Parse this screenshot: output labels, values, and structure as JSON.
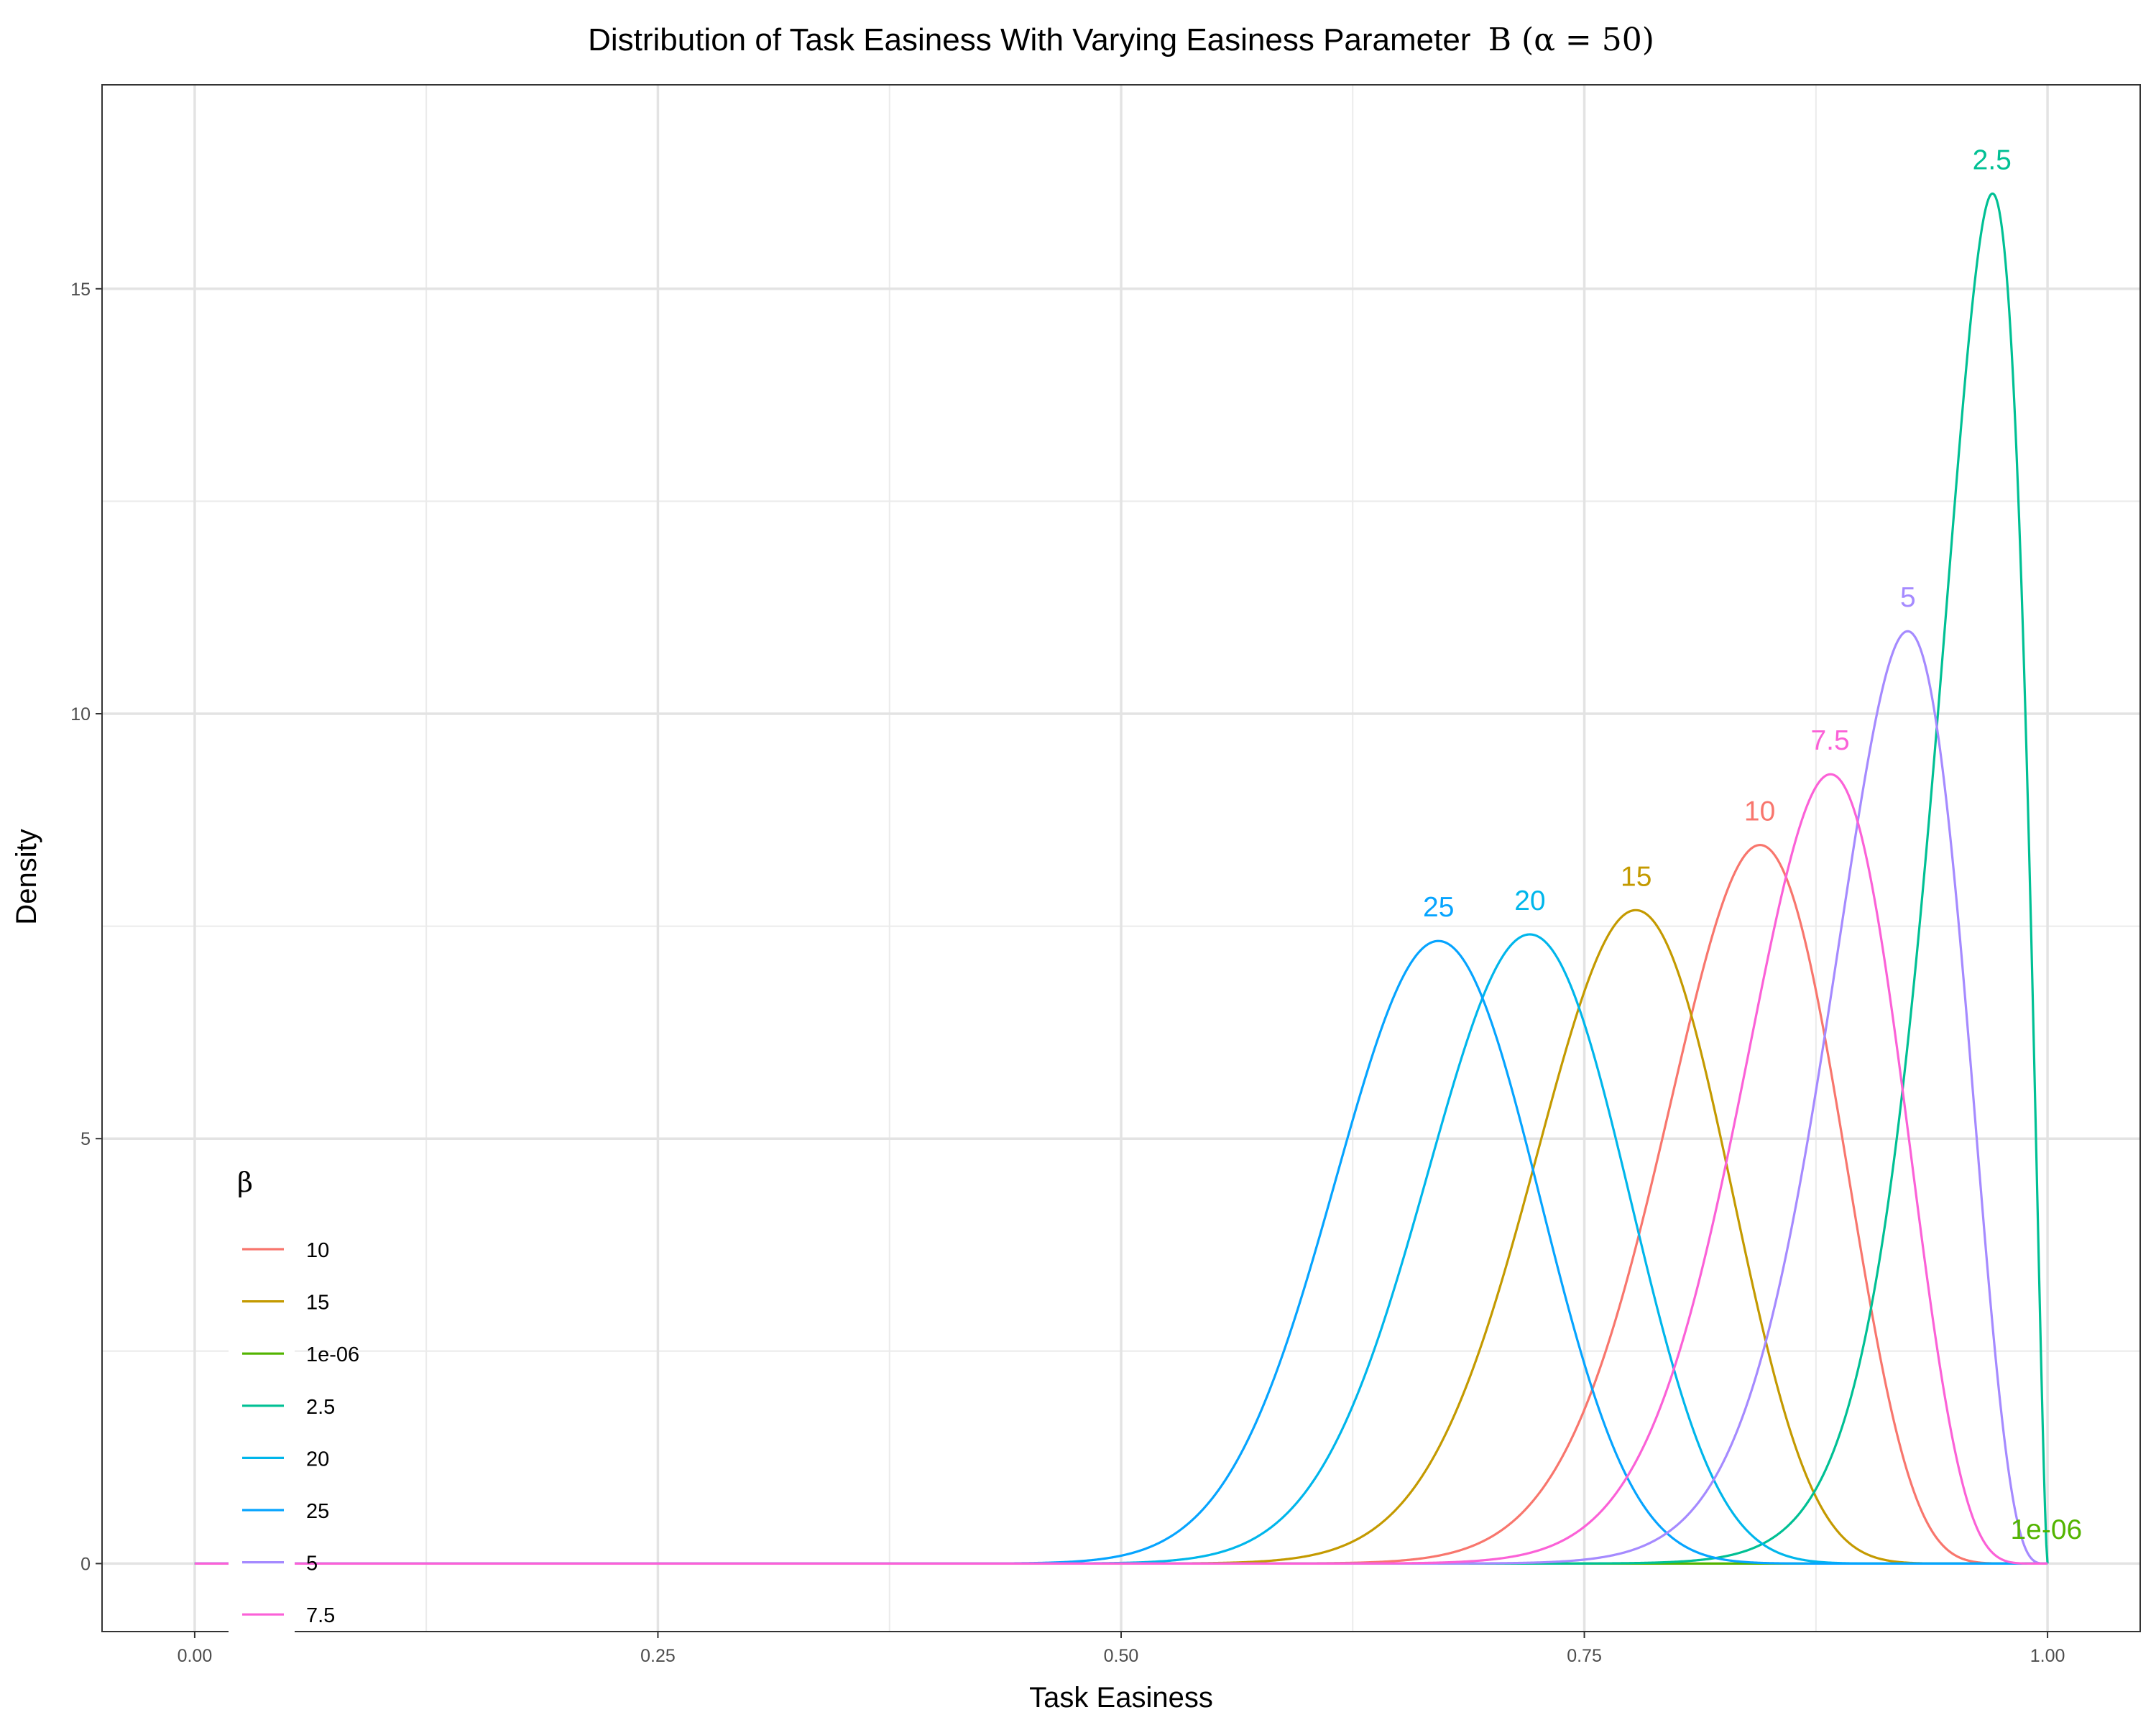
{
  "chart_data": {
    "type": "line",
    "title": "Distribution of Task Easiness With Varying Easiness Parameter",
    "title_symbol": "Β (α = 50)",
    "xlabel": "Task Easiness",
    "ylabel": "Density",
    "xlim": [
      -0.05,
      1.05
    ],
    "ylim": [
      -0.8,
      17.4
    ],
    "x_ticks": [
      0.0,
      0.25,
      0.5,
      0.75,
      1.0
    ],
    "x_tick_labels": [
      "0.00",
      "0.25",
      "0.50",
      "0.75",
      "1.00"
    ],
    "y_ticks": [
      0,
      5,
      10,
      15
    ],
    "y_tick_labels": [
      "0",
      "5",
      "10",
      "15"
    ],
    "grid": true,
    "legend": {
      "title": "β",
      "position": "bottom-left-inside"
    },
    "alpha": 50,
    "series": [
      {
        "name": "10",
        "beta": 10,
        "color": "#F8766D",
        "peak_label": "10"
      },
      {
        "name": "15",
        "beta": 15,
        "color": "#C49A00",
        "peak_label": "15"
      },
      {
        "name": "1e-06",
        "beta": 1e-06,
        "color": "#53B400",
        "peak_label": "1e-06"
      },
      {
        "name": "2.5",
        "beta": 2.5,
        "color": "#00C094",
        "peak_label": "2.5"
      },
      {
        "name": "20",
        "beta": 20,
        "color": "#00B6EB",
        "peak_label": "20"
      },
      {
        "name": "25",
        "beta": 25,
        "color": "#06A4FF",
        "peak_label": "25"
      },
      {
        "name": "5",
        "beta": 5,
        "color": "#A58AFF",
        "peak_label": "5"
      },
      {
        "name": "7.5",
        "beta": 7.5,
        "color": "#FB61D7",
        "peak_label": "7.5"
      }
    ]
  }
}
